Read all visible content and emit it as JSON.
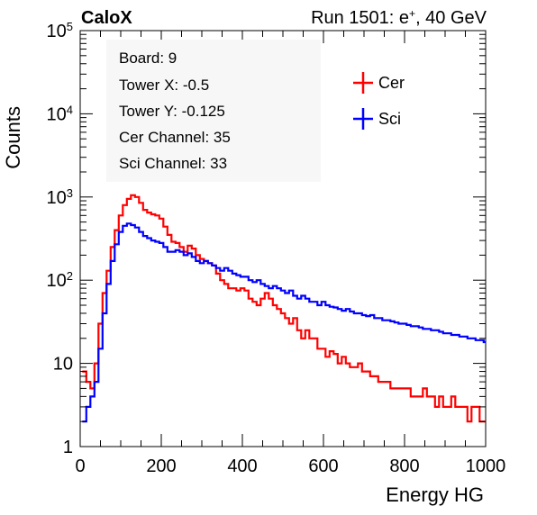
{
  "header": {
    "brand": "CaloX",
    "run_text": "Run 1501: e",
    "run_sup": "+",
    "run_suffix": ", 40 GeV"
  },
  "info_box": {
    "lines": [
      "Board: 9",
      "Tower X: -0.5",
      "Tower Y: -0.125",
      "Cer Channel: 35",
      "Sci Channel: 33"
    ]
  },
  "colors": {
    "cer": "#ff0000",
    "sci": "#0000ff",
    "axis": "#000000",
    "info_bg": "#f7f7f7"
  },
  "chart_data": {
    "type": "line",
    "xlabel": "Energy HG",
    "ylabel": "Counts",
    "xlim": [
      0,
      1000
    ],
    "ylim": [
      1,
      100000
    ],
    "yscale": "log",
    "grid": false,
    "legend_position": "top-right",
    "x_ticks": [
      {
        "value": 0,
        "label": "0"
      },
      {
        "value": 200,
        "label": "200"
      },
      {
        "value": 400,
        "label": "400"
      },
      {
        "value": 600,
        "label": "600"
      },
      {
        "value": 800,
        "label": "800"
      },
      {
        "value": 1000,
        "label": "1000"
      }
    ],
    "y_ticks": [
      {
        "value": 1,
        "base": "1",
        "exp": ""
      },
      {
        "value": 10,
        "base": "10",
        "exp": ""
      },
      {
        "value": 100,
        "base": "10",
        "exp": "2"
      },
      {
        "value": 1000,
        "base": "10",
        "exp": "3"
      },
      {
        "value": 10000,
        "base": "10",
        "exp": "4"
      },
      {
        "value": 100000,
        "base": "10",
        "exp": "5"
      }
    ],
    "series": [
      {
        "name": "Cer",
        "color": "#ff0000",
        "x": [
          10,
          20,
          30,
          40,
          50,
          60,
          70,
          80,
          90,
          100,
          110,
          120,
          130,
          140,
          150,
          160,
          170,
          180,
          190,
          200,
          210,
          220,
          230,
          240,
          250,
          260,
          270,
          280,
          290,
          300,
          310,
          320,
          330,
          340,
          350,
          360,
          370,
          380,
          390,
          400,
          410,
          420,
          430,
          440,
          450,
          460,
          470,
          480,
          490,
          500,
          510,
          520,
          530,
          540,
          550,
          560,
          570,
          580,
          590,
          600,
          610,
          620,
          630,
          640,
          650,
          660,
          670,
          680,
          690,
          700,
          710,
          720,
          730,
          740,
          750,
          760,
          770,
          780,
          790,
          800,
          810,
          820,
          830,
          840,
          850,
          860,
          870,
          880,
          890,
          900,
          910,
          920,
          930,
          940,
          950,
          960,
          970,
          980,
          990,
          1000
        ],
        "y": [
          8,
          6,
          5,
          10,
          30,
          70,
          130,
          250,
          400,
          600,
          800,
          950,
          1050,
          1000,
          850,
          700,
          650,
          620,
          600,
          550,
          440,
          350,
          290,
          280,
          250,
          220,
          260,
          240,
          200,
          180,
          170,
          160,
          150,
          120,
          100,
          90,
          80,
          80,
          75,
          80,
          75,
          60,
          55,
          50,
          60,
          70,
          60,
          50,
          45,
          40,
          35,
          30,
          35,
          25,
          20,
          25,
          20,
          20,
          15,
          15,
          12,
          14,
          13,
          10,
          12,
          10,
          9,
          9,
          10,
          8,
          8,
          7,
          7,
          6,
          6,
          6,
          5,
          5,
          5,
          5,
          5,
          4,
          4,
          4,
          5,
          4,
          4,
          3,
          4,
          3,
          3,
          4,
          3,
          3,
          3,
          2,
          3,
          3,
          2,
          2
        ]
      },
      {
        "name": "Sci",
        "color": "#0000ff",
        "x": [
          10,
          20,
          30,
          40,
          50,
          60,
          70,
          80,
          90,
          100,
          110,
          120,
          130,
          140,
          150,
          160,
          170,
          180,
          190,
          200,
          210,
          220,
          230,
          240,
          250,
          260,
          270,
          280,
          290,
          300,
          310,
          320,
          330,
          340,
          350,
          360,
          370,
          380,
          390,
          400,
          410,
          420,
          430,
          440,
          450,
          460,
          470,
          480,
          490,
          500,
          510,
          520,
          530,
          540,
          550,
          560,
          570,
          580,
          590,
          600,
          610,
          620,
          630,
          640,
          650,
          660,
          670,
          680,
          690,
          700,
          710,
          720,
          730,
          740,
          750,
          760,
          770,
          780,
          790,
          800,
          810,
          820,
          830,
          840,
          850,
          860,
          870,
          880,
          890,
          900,
          910,
          920,
          930,
          940,
          950,
          960,
          970,
          980,
          990,
          1000
        ],
        "y": [
          2,
          3,
          4,
          6,
          15,
          40,
          90,
          170,
          270,
          380,
          450,
          480,
          460,
          430,
          380,
          340,
          320,
          300,
          290,
          280,
          250,
          220,
          220,
          230,
          220,
          200,
          210,
          190,
          170,
          160,
          170,
          160,
          150,
          140,
          130,
          140,
          130,
          120,
          115,
          110,
          110,
          100,
          95,
          100,
          90,
          85,
          80,
          85,
          80,
          75,
          70,
          75,
          65,
          60,
          65,
          60,
          55,
          55,
          50,
          55,
          50,
          48,
          47,
          45,
          43,
          45,
          42,
          40,
          40,
          38,
          37,
          38,
          35,
          35,
          33,
          33,
          32,
          31,
          30,
          30,
          29,
          28,
          28,
          27,
          26,
          26,
          25,
          25,
          24,
          23,
          23,
          22,
          22,
          21,
          21,
          20,
          20,
          19,
          19,
          18
        ]
      }
    ]
  }
}
